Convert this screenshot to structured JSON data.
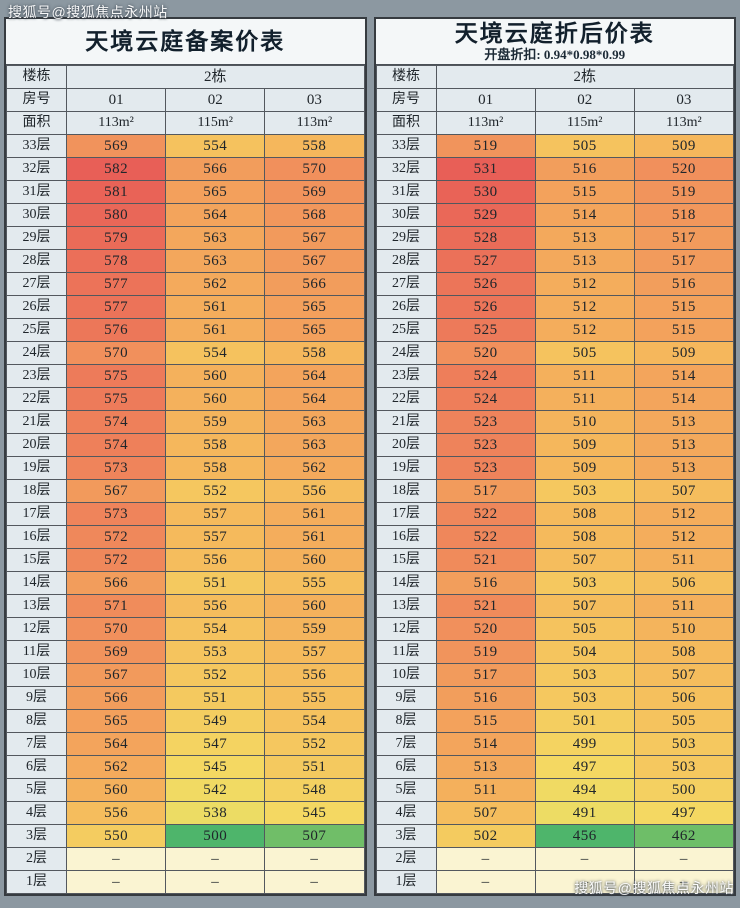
{
  "watermark": {
    "text": "搜狐号@搜狐焦点永州站"
  },
  "colors": {
    "background": "#8c98a1",
    "header_bg": "#e3eaee",
    "title_bg": "#f4f7f8",
    "border": "#53585e",
    "dash_bg": "#faf4d2",
    "scale": [
      {
        "t": 0.0,
        "color": "#4eb56b"
      },
      {
        "t": 0.2,
        "color": "#9ecb64"
      },
      {
        "t": 0.4,
        "color": "#e7df66"
      },
      {
        "t": 0.55,
        "color": "#f4d862"
      },
      {
        "t": 0.7,
        "color": "#f5b95c"
      },
      {
        "t": 0.85,
        "color": "#f1915c"
      },
      {
        "t": 1.0,
        "color": "#e85f57"
      }
    ]
  },
  "chart_data": [
    {
      "type": "heatmap",
      "title": "天境云庭备案价表",
      "subtitle": "",
      "row_labels": {
        "building": "楼栋",
        "room": "房号",
        "area": "面积"
      },
      "building": "2栋",
      "rooms": [
        "01",
        "02",
        "03"
      ],
      "areas": [
        "113m²",
        "115m²",
        "113m²"
      ],
      "dash": "–",
      "scale_min": 500,
      "scale_max": 582,
      "rows": [
        {
          "floor": "33层",
          "prices": [
            569,
            554,
            558
          ]
        },
        {
          "floor": "32层",
          "prices": [
            582,
            566,
            570
          ]
        },
        {
          "floor": "31层",
          "prices": [
            581,
            565,
            569
          ]
        },
        {
          "floor": "30层",
          "prices": [
            580,
            564,
            568
          ]
        },
        {
          "floor": "29层",
          "prices": [
            579,
            563,
            567
          ]
        },
        {
          "floor": "28层",
          "prices": [
            578,
            563,
            567
          ]
        },
        {
          "floor": "27层",
          "prices": [
            577,
            562,
            566
          ]
        },
        {
          "floor": "26层",
          "prices": [
            577,
            561,
            565
          ]
        },
        {
          "floor": "25层",
          "prices": [
            576,
            561,
            565
          ]
        },
        {
          "floor": "24层",
          "prices": [
            570,
            554,
            558
          ]
        },
        {
          "floor": "23层",
          "prices": [
            575,
            560,
            564
          ]
        },
        {
          "floor": "22层",
          "prices": [
            575,
            560,
            564
          ]
        },
        {
          "floor": "21层",
          "prices": [
            574,
            559,
            563
          ]
        },
        {
          "floor": "20层",
          "prices": [
            574,
            558,
            563
          ]
        },
        {
          "floor": "19层",
          "prices": [
            573,
            558,
            562
          ]
        },
        {
          "floor": "18层",
          "prices": [
            567,
            552,
            556
          ]
        },
        {
          "floor": "17层",
          "prices": [
            573,
            557,
            561
          ]
        },
        {
          "floor": "16层",
          "prices": [
            572,
            557,
            561
          ]
        },
        {
          "floor": "15层",
          "prices": [
            572,
            556,
            560
          ]
        },
        {
          "floor": "14层",
          "prices": [
            566,
            551,
            555
          ]
        },
        {
          "floor": "13层",
          "prices": [
            571,
            556,
            560
          ]
        },
        {
          "floor": "12层",
          "prices": [
            570,
            554,
            559
          ]
        },
        {
          "floor": "11层",
          "prices": [
            569,
            553,
            557
          ]
        },
        {
          "floor": "10层",
          "prices": [
            567,
            552,
            556
          ]
        },
        {
          "floor": "9层",
          "prices": [
            566,
            551,
            555
          ]
        },
        {
          "floor": "8层",
          "prices": [
            565,
            549,
            554
          ]
        },
        {
          "floor": "7层",
          "prices": [
            564,
            547,
            552
          ]
        },
        {
          "floor": "6层",
          "prices": [
            562,
            545,
            551
          ]
        },
        {
          "floor": "5层",
          "prices": [
            560,
            542,
            548
          ]
        },
        {
          "floor": "4层",
          "prices": [
            556,
            538,
            545
          ]
        },
        {
          "floor": "3层",
          "prices": [
            550,
            500,
            507
          ]
        },
        {
          "floor": "2层",
          "prices": [
            null,
            null,
            null
          ]
        },
        {
          "floor": "1层",
          "prices": [
            null,
            null,
            null
          ]
        }
      ]
    },
    {
      "type": "heatmap",
      "title": "天境云庭折后价表",
      "subtitle": "开盘折扣: 0.94*0.98*0.99",
      "row_labels": {
        "building": "楼栋",
        "room": "房号",
        "area": "面积"
      },
      "building": "2栋",
      "rooms": [
        "01",
        "02",
        "03"
      ],
      "areas": [
        "113m²",
        "115m²",
        "113m²"
      ],
      "dash": "–",
      "scale_min": 456,
      "scale_max": 531,
      "rows": [
        {
          "floor": "33层",
          "prices": [
            519,
            505,
            509
          ]
        },
        {
          "floor": "32层",
          "prices": [
            531,
            516,
            520
          ]
        },
        {
          "floor": "31层",
          "prices": [
            530,
            515,
            519
          ]
        },
        {
          "floor": "30层",
          "prices": [
            529,
            514,
            518
          ]
        },
        {
          "floor": "29层",
          "prices": [
            528,
            513,
            517
          ]
        },
        {
          "floor": "28层",
          "prices": [
            527,
            513,
            517
          ]
        },
        {
          "floor": "27层",
          "prices": [
            526,
            512,
            516
          ]
        },
        {
          "floor": "26层",
          "prices": [
            526,
            512,
            515
          ]
        },
        {
          "floor": "25层",
          "prices": [
            525,
            512,
            515
          ]
        },
        {
          "floor": "24层",
          "prices": [
            520,
            505,
            509
          ]
        },
        {
          "floor": "23层",
          "prices": [
            524,
            511,
            514
          ]
        },
        {
          "floor": "22层",
          "prices": [
            524,
            511,
            514
          ]
        },
        {
          "floor": "21层",
          "prices": [
            523,
            510,
            513
          ]
        },
        {
          "floor": "20层",
          "prices": [
            523,
            509,
            513
          ]
        },
        {
          "floor": "19层",
          "prices": [
            523,
            509,
            513
          ]
        },
        {
          "floor": "18层",
          "prices": [
            517,
            503,
            507
          ]
        },
        {
          "floor": "17层",
          "prices": [
            522,
            508,
            512
          ]
        },
        {
          "floor": "16层",
          "prices": [
            522,
            508,
            512
          ]
        },
        {
          "floor": "15层",
          "prices": [
            521,
            507,
            511
          ]
        },
        {
          "floor": "14层",
          "prices": [
            516,
            503,
            506
          ]
        },
        {
          "floor": "13层",
          "prices": [
            521,
            507,
            511
          ]
        },
        {
          "floor": "12层",
          "prices": [
            520,
            505,
            510
          ]
        },
        {
          "floor": "11层",
          "prices": [
            519,
            504,
            508
          ]
        },
        {
          "floor": "10层",
          "prices": [
            517,
            503,
            507
          ]
        },
        {
          "floor": "9层",
          "prices": [
            516,
            503,
            506
          ]
        },
        {
          "floor": "8层",
          "prices": [
            515,
            501,
            505
          ]
        },
        {
          "floor": "7层",
          "prices": [
            514,
            499,
            503
          ]
        },
        {
          "floor": "6层",
          "prices": [
            513,
            497,
            503
          ]
        },
        {
          "floor": "5层",
          "prices": [
            511,
            494,
            500
          ]
        },
        {
          "floor": "4层",
          "prices": [
            507,
            491,
            497
          ]
        },
        {
          "floor": "3层",
          "prices": [
            502,
            456,
            462
          ]
        },
        {
          "floor": "2层",
          "prices": [
            null,
            null,
            null
          ]
        },
        {
          "floor": "1层",
          "prices": [
            null,
            null,
            null
          ]
        }
      ]
    }
  ]
}
